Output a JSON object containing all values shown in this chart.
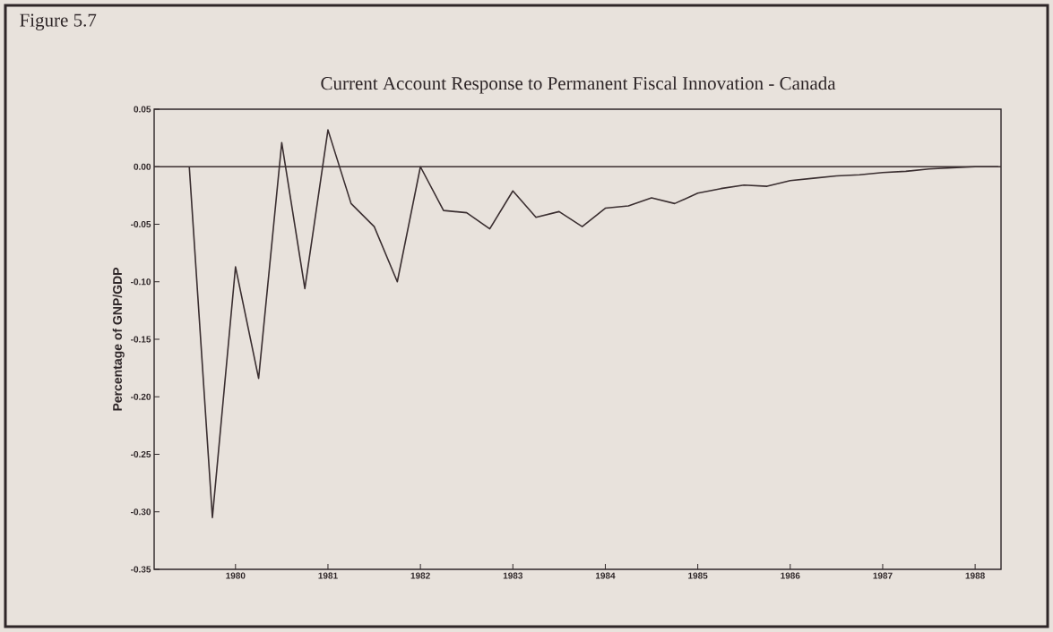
{
  "chart_data": {
    "type": "line",
    "title": "Current Account Response to Permanent Fiscal Innovation - Canada",
    "ylabel": "Percentage of GNP/GDP",
    "annotations": [
      "Figure 5.7"
    ],
    "x": [
      1979.5,
      1979.75,
      1980,
      1980.25,
      1980.5,
      1980.75,
      1981,
      1981.25,
      1981.5,
      1981.75,
      1982,
      1982.25,
      1982.5,
      1982.75,
      1983,
      1983.25,
      1983.5,
      1983.75,
      1984,
      1984.25,
      1984.5,
      1984.75,
      1985,
      1985.25,
      1985.5,
      1985.75,
      1986,
      1986.25,
      1986.5,
      1986.75,
      1987,
      1987.25,
      1987.5,
      1987.75,
      1988,
      1988.25
    ],
    "series": [
      {
        "color": "#3a2e30",
        "values": [
          0,
          -0.305,
          -0.087,
          -0.184,
          0.021,
          -0.106,
          0.032,
          -0.032,
          -0.052,
          -0.1,
          0.0,
          -0.038,
          -0.04,
          -0.054,
          -0.021,
          -0.044,
          -0.039,
          -0.052,
          -0.036,
          -0.034,
          -0.027,
          -0.032,
          -0.023,
          -0.019,
          -0.016,
          -0.017,
          -0.012,
          -0.01,
          -0.008,
          -0.007,
          -0.005,
          -0.004,
          -0.002,
          -0.001,
          0.0,
          0.0
        ]
      }
    ],
    "xlim": [
      1979.12,
      1988.28
    ],
    "ylim": [
      -0.35,
      0.05
    ],
    "xticks": [
      1980,
      1981,
      1982,
      1983,
      1984,
      1985,
      1986,
      1987,
      1988
    ],
    "yticks": [
      {
        "value": 0.05,
        "label": "0.05"
      },
      {
        "value": 0.0,
        "label": "0.00"
      },
      {
        "value": -0.05,
        "label": "-0.05"
      },
      {
        "value": -0.1,
        "label": "-0.10"
      },
      {
        "value": -0.15,
        "label": "-0.15"
      },
      {
        "value": -0.2,
        "label": "-0.20"
      },
      {
        "value": -0.25,
        "label": "-0.25"
      },
      {
        "value": -0.3,
        "label": "-0.30"
      },
      {
        "value": -0.35,
        "label": "-0.35"
      }
    ],
    "ref_lines": [
      {
        "axis": "y",
        "value": 0,
        "color": "#3a2e30"
      }
    ],
    "grid": false,
    "marker": "none",
    "line_style": "solid"
  }
}
